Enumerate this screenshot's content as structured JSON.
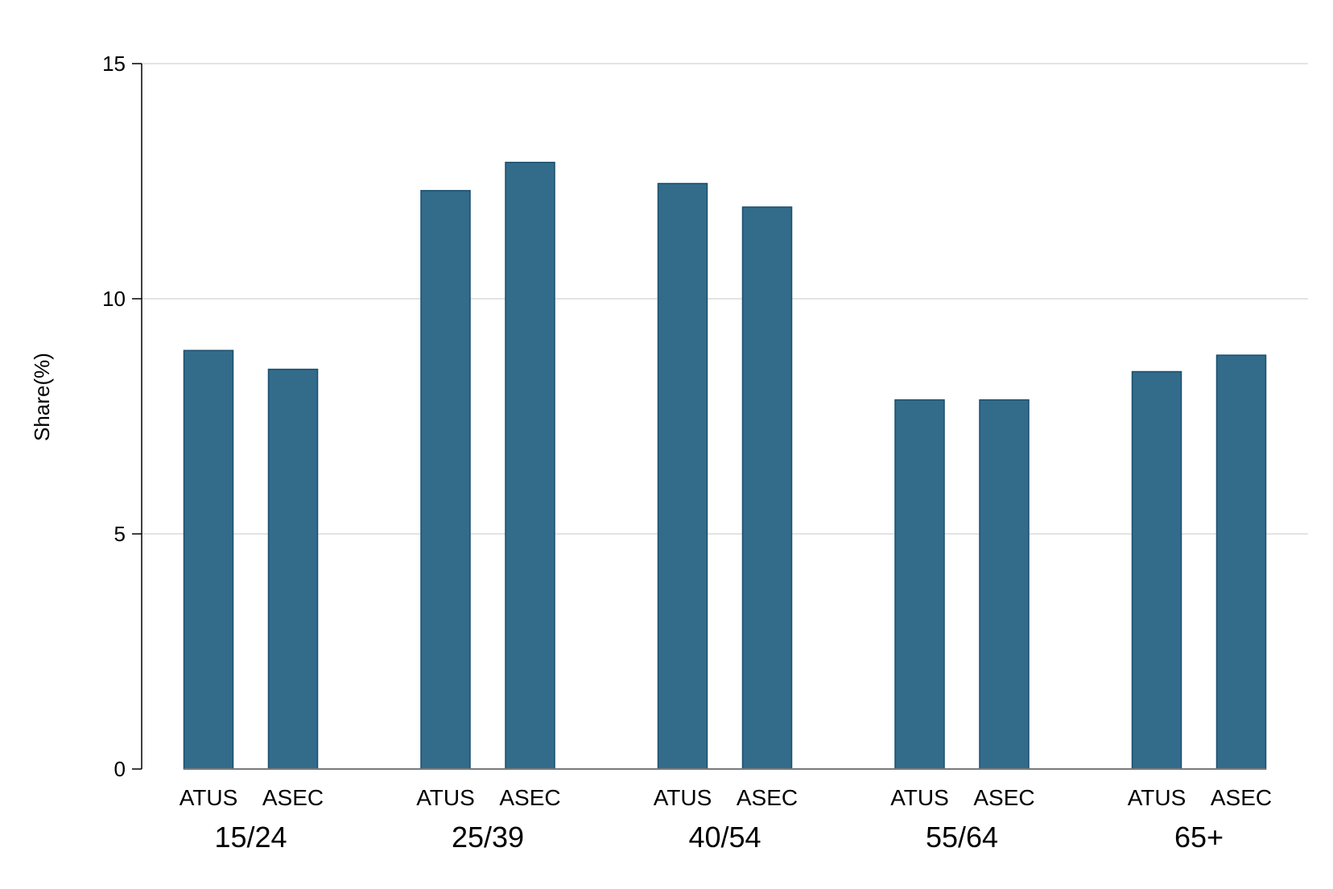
{
  "chart_data": {
    "type": "bar",
    "title": "",
    "xlabel": "",
    "ylabel": "Share(%)",
    "ylim": [
      0,
      15
    ],
    "yticks": [
      "0",
      "5",
      "10",
      "15"
    ],
    "grid": true,
    "legend": "none",
    "groups": [
      {
        "label": "15/24",
        "bars": [
          {
            "label": "ATUS",
            "value": 8.9
          },
          {
            "label": "ASEC",
            "value": 8.5
          }
        ]
      },
      {
        "label": "25/39",
        "bars": [
          {
            "label": "ATUS",
            "value": 12.3
          },
          {
            "label": "ASEC",
            "value": 12.9
          }
        ]
      },
      {
        "label": "40/54",
        "bars": [
          {
            "label": "ATUS",
            "value": 12.45
          },
          {
            "label": "ASEC",
            "value": 11.95
          }
        ]
      },
      {
        "label": "55/64",
        "bars": [
          {
            "label": "ATUS",
            "value": 7.85
          },
          {
            "label": "ASEC",
            "value": 7.85
          }
        ]
      },
      {
        "label": "65+",
        "bars": [
          {
            "label": "ATUS",
            "value": 8.45
          },
          {
            "label": "ASEC",
            "value": 8.8
          }
        ]
      }
    ],
    "colors": {
      "bar_fill": "#336b8b",
      "bar_stroke": "#1a4f6e",
      "grid": "#dcdcdc",
      "axis": "#000000"
    }
  }
}
